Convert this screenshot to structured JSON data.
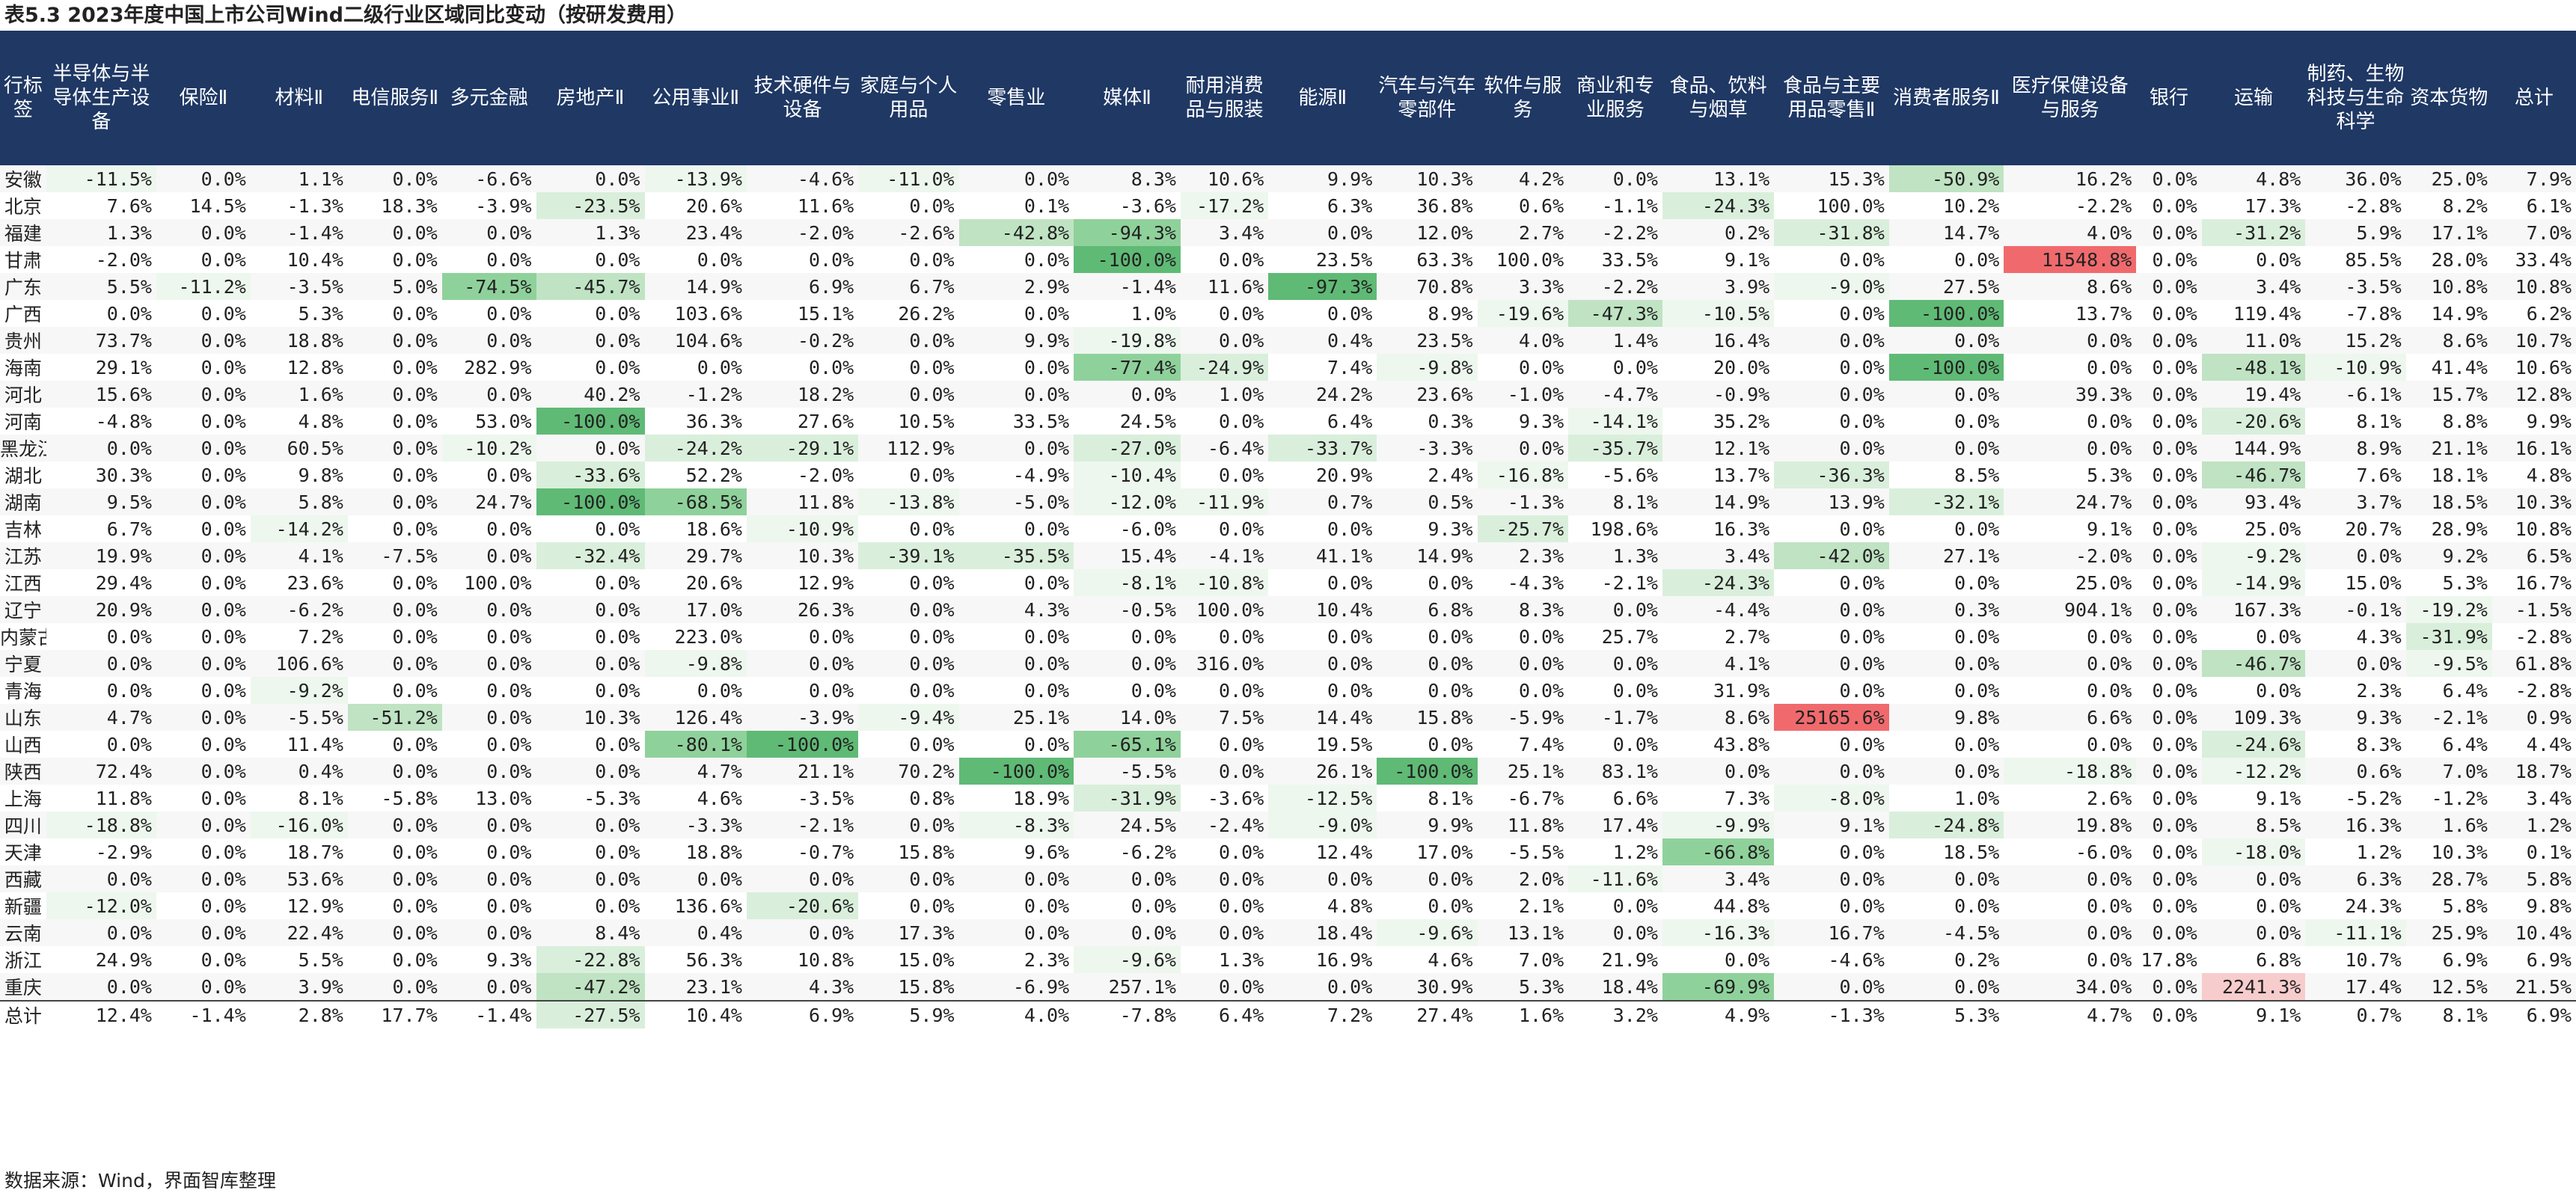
{
  "title": "表5.3 2023年度中国上市公司Wind二级行业区域同比变动（按研发费用）",
  "source": "数据来源：Wind，界面智库整理",
  "headers": [
    "行标签",
    "半导体与半导体生产设备",
    "保险Ⅱ",
    "材料Ⅱ",
    "电信服务Ⅱ",
    "多元金融",
    "房地产Ⅱ",
    "公用事业Ⅱ",
    "技术硬件与设备",
    "家庭与个人用品",
    "零售业",
    "媒体Ⅱ",
    "耐用消费品与服装",
    "能源Ⅱ",
    "汽车与汽车零部件",
    "软件与服务",
    "商业和专业服务",
    "食品、饮料与烟草",
    "食品与主要用品零售Ⅱ",
    "消费者服务Ⅱ",
    "医疗保健设备与服务",
    "银行",
    "运输",
    "制药、生物科技与生命科学",
    "资本货物",
    "总计"
  ],
  "rows": [
    {
      "label": "安徽",
      "values": [
        "-11.5%",
        "0.0%",
        "1.1%",
        "0.0%",
        "-6.6%",
        "0.0%",
        "-13.9%",
        "-4.6%",
        "-11.0%",
        "0.0%",
        "8.3%",
        "10.6%",
        "9.9%",
        "10.3%",
        "4.2%",
        "0.0%",
        "13.1%",
        "15.3%",
        "-50.9%",
        "16.2%",
        "0.0%",
        "4.8%",
        "36.0%",
        "25.0%",
        "7.9%"
      ]
    },
    {
      "label": "北京",
      "values": [
        "7.6%",
        "14.5%",
        "-1.3%",
        "18.3%",
        "-3.9%",
        "-23.5%",
        "20.6%",
        "11.6%",
        "0.0%",
        "0.1%",
        "-3.6%",
        "-17.2%",
        "6.3%",
        "36.8%",
        "0.6%",
        "-1.1%",
        "-24.3%",
        "100.0%",
        "10.2%",
        "-2.2%",
        "0.0%",
        "17.3%",
        "-2.8%",
        "8.2%",
        "6.1%"
      ]
    },
    {
      "label": "福建",
      "values": [
        "1.3%",
        "0.0%",
        "-1.4%",
        "0.0%",
        "0.0%",
        "1.3%",
        "23.4%",
        "-2.0%",
        "-2.6%",
        "-42.8%",
        "-94.3%",
        "3.4%",
        "0.0%",
        "12.0%",
        "2.7%",
        "-2.2%",
        "0.2%",
        "-31.8%",
        "14.7%",
        "4.0%",
        "0.0%",
        "-31.2%",
        "5.9%",
        "17.1%",
        "7.0%"
      ]
    },
    {
      "label": "甘肃",
      "values": [
        "-2.0%",
        "0.0%",
        "10.4%",
        "0.0%",
        "0.0%",
        "0.0%",
        "0.0%",
        "0.0%",
        "0.0%",
        "0.0%",
        "-100.0%",
        "0.0%",
        "23.5%",
        "63.3%",
        "100.0%",
        "33.5%",
        "9.1%",
        "0.0%",
        "0.0%",
        "11548.8%",
        "0.0%",
        "0.0%",
        "85.5%",
        "28.0%",
        "33.4%"
      ]
    },
    {
      "label": "广东",
      "values": [
        "5.5%",
        "-11.2%",
        "-3.5%",
        "5.0%",
        "-74.5%",
        "-45.7%",
        "14.9%",
        "6.9%",
        "6.7%",
        "2.9%",
        "-1.4%",
        "11.6%",
        "-97.3%",
        "70.8%",
        "3.3%",
        "-2.2%",
        "3.9%",
        "-9.0%",
        "27.5%",
        "8.6%",
        "0.0%",
        "3.4%",
        "-3.5%",
        "10.8%",
        "10.8%"
      ]
    },
    {
      "label": "广西",
      "values": [
        "0.0%",
        "0.0%",
        "5.3%",
        "0.0%",
        "0.0%",
        "0.0%",
        "103.6%",
        "15.1%",
        "26.2%",
        "0.0%",
        "1.0%",
        "0.0%",
        "0.0%",
        "8.9%",
        "-19.6%",
        "-47.3%",
        "-10.5%",
        "0.0%",
        "-100.0%",
        "13.7%",
        "0.0%",
        "119.4%",
        "-7.8%",
        "14.9%",
        "6.2%"
      ]
    },
    {
      "label": "贵州",
      "values": [
        "73.7%",
        "0.0%",
        "18.8%",
        "0.0%",
        "0.0%",
        "0.0%",
        "104.6%",
        "-0.2%",
        "0.0%",
        "9.9%",
        "-19.8%",
        "0.0%",
        "0.4%",
        "23.5%",
        "4.0%",
        "1.4%",
        "16.4%",
        "0.0%",
        "0.0%",
        "0.0%",
        "0.0%",
        "11.0%",
        "15.2%",
        "8.6%",
        "10.7%"
      ]
    },
    {
      "label": "海南",
      "values": [
        "29.1%",
        "0.0%",
        "12.8%",
        "0.0%",
        "282.9%",
        "0.0%",
        "0.0%",
        "0.0%",
        "0.0%",
        "0.0%",
        "-77.4%",
        "-24.9%",
        "7.4%",
        "-9.8%",
        "0.0%",
        "0.0%",
        "20.0%",
        "0.0%",
        "-100.0%",
        "0.0%",
        "0.0%",
        "-48.1%",
        "-10.9%",
        "41.4%",
        "10.6%"
      ]
    },
    {
      "label": "河北",
      "values": [
        "15.6%",
        "0.0%",
        "1.6%",
        "0.0%",
        "0.0%",
        "40.2%",
        "-1.2%",
        "18.2%",
        "0.0%",
        "0.0%",
        "0.0%",
        "1.0%",
        "24.2%",
        "23.6%",
        "-1.0%",
        "-4.7%",
        "-0.9%",
        "0.0%",
        "0.0%",
        "39.3%",
        "0.0%",
        "19.4%",
        "-6.1%",
        "15.7%",
        "12.8%"
      ]
    },
    {
      "label": "河南",
      "values": [
        "-4.8%",
        "0.0%",
        "4.8%",
        "0.0%",
        "53.0%",
        "-100.0%",
        "36.3%",
        "27.6%",
        "10.5%",
        "33.5%",
        "24.5%",
        "0.0%",
        "6.4%",
        "0.3%",
        "9.3%",
        "-14.1%",
        "35.2%",
        "0.0%",
        "0.0%",
        "0.0%",
        "0.0%",
        "-20.6%",
        "8.1%",
        "8.8%",
        "9.9%"
      ]
    },
    {
      "label": "黑龙江",
      "values": [
        "0.0%",
        "0.0%",
        "60.5%",
        "0.0%",
        "-10.2%",
        "0.0%",
        "-24.2%",
        "-29.1%",
        "112.9%",
        "0.0%",
        "-27.0%",
        "-6.4%",
        "-33.7%",
        "-3.3%",
        "0.0%",
        "-35.7%",
        "12.1%",
        "0.0%",
        "0.0%",
        "0.0%",
        "0.0%",
        "144.9%",
        "8.9%",
        "21.1%",
        "16.1%"
      ]
    },
    {
      "label": "湖北",
      "values": [
        "30.3%",
        "0.0%",
        "9.8%",
        "0.0%",
        "0.0%",
        "-33.6%",
        "52.2%",
        "-2.0%",
        "0.0%",
        "-4.9%",
        "-10.4%",
        "0.0%",
        "20.9%",
        "2.4%",
        "-16.8%",
        "-5.6%",
        "13.7%",
        "-36.3%",
        "8.5%",
        "5.3%",
        "0.0%",
        "-46.7%",
        "7.6%",
        "18.1%",
        "4.8%"
      ]
    },
    {
      "label": "湖南",
      "values": [
        "9.5%",
        "0.0%",
        "5.8%",
        "0.0%",
        "24.7%",
        "-100.0%",
        "-68.5%",
        "11.8%",
        "-13.8%",
        "-5.0%",
        "-12.0%",
        "-11.9%",
        "0.7%",
        "0.5%",
        "-1.3%",
        "8.1%",
        "14.9%",
        "13.9%",
        "-32.1%",
        "24.7%",
        "0.0%",
        "93.4%",
        "3.7%",
        "18.5%",
        "10.3%"
      ]
    },
    {
      "label": "吉林",
      "values": [
        "6.7%",
        "0.0%",
        "-14.2%",
        "0.0%",
        "0.0%",
        "0.0%",
        "18.6%",
        "-10.9%",
        "0.0%",
        "0.0%",
        "-6.0%",
        "0.0%",
        "0.0%",
        "9.3%",
        "-25.7%",
        "198.6%",
        "16.3%",
        "0.0%",
        "0.0%",
        "9.1%",
        "0.0%",
        "25.0%",
        "20.7%",
        "28.9%",
        "10.8%"
      ]
    },
    {
      "label": "江苏",
      "values": [
        "19.9%",
        "0.0%",
        "4.1%",
        "-7.5%",
        "0.0%",
        "-32.4%",
        "29.7%",
        "10.3%",
        "-39.1%",
        "-35.5%",
        "15.4%",
        "-4.1%",
        "41.1%",
        "14.9%",
        "2.3%",
        "1.3%",
        "3.4%",
        "-42.0%",
        "27.1%",
        "-2.0%",
        "0.0%",
        "-9.2%",
        "0.0%",
        "9.2%",
        "6.5%"
      ]
    },
    {
      "label": "江西",
      "values": [
        "29.4%",
        "0.0%",
        "23.6%",
        "0.0%",
        "100.0%",
        "0.0%",
        "20.6%",
        "12.9%",
        "0.0%",
        "0.0%",
        "-8.1%",
        "-10.8%",
        "0.0%",
        "0.0%",
        "-4.3%",
        "-2.1%",
        "-24.3%",
        "0.0%",
        "0.0%",
        "25.0%",
        "0.0%",
        "-14.9%",
        "15.0%",
        "5.3%",
        "16.7%"
      ]
    },
    {
      "label": "辽宁",
      "values": [
        "20.9%",
        "0.0%",
        "-6.2%",
        "0.0%",
        "0.0%",
        "0.0%",
        "17.0%",
        "26.3%",
        "0.0%",
        "4.3%",
        "-0.5%",
        "100.0%",
        "10.4%",
        "6.8%",
        "8.3%",
        "0.0%",
        "-4.4%",
        "0.0%",
        "0.3%",
        "904.1%",
        "0.0%",
        "167.3%",
        "-0.1%",
        "-19.2%",
        "-1.5%"
      ]
    },
    {
      "label": "内蒙古",
      "values": [
        "0.0%",
        "0.0%",
        "7.2%",
        "0.0%",
        "0.0%",
        "0.0%",
        "223.0%",
        "0.0%",
        "0.0%",
        "0.0%",
        "0.0%",
        "0.0%",
        "0.0%",
        "0.0%",
        "0.0%",
        "25.7%",
        "2.7%",
        "0.0%",
        "0.0%",
        "0.0%",
        "0.0%",
        "0.0%",
        "4.3%",
        "-31.9%",
        "-2.8%"
      ]
    },
    {
      "label": "宁夏",
      "values": [
        "0.0%",
        "0.0%",
        "106.6%",
        "0.0%",
        "0.0%",
        "0.0%",
        "-9.8%",
        "0.0%",
        "0.0%",
        "0.0%",
        "0.0%",
        "316.0%",
        "0.0%",
        "0.0%",
        "0.0%",
        "0.0%",
        "4.1%",
        "0.0%",
        "0.0%",
        "0.0%",
        "0.0%",
        "-46.7%",
        "0.0%",
        "-9.5%",
        "61.8%"
      ]
    },
    {
      "label": "青海",
      "values": [
        "0.0%",
        "0.0%",
        "-9.2%",
        "0.0%",
        "0.0%",
        "0.0%",
        "0.0%",
        "0.0%",
        "0.0%",
        "0.0%",
        "0.0%",
        "0.0%",
        "0.0%",
        "0.0%",
        "0.0%",
        "0.0%",
        "31.9%",
        "0.0%",
        "0.0%",
        "0.0%",
        "0.0%",
        "0.0%",
        "2.3%",
        "6.4%",
        "-2.8%"
      ]
    },
    {
      "label": "山东",
      "values": [
        "4.7%",
        "0.0%",
        "-5.5%",
        "-51.2%",
        "0.0%",
        "10.3%",
        "126.4%",
        "-3.9%",
        "-9.4%",
        "25.1%",
        "14.0%",
        "7.5%",
        "14.4%",
        "15.8%",
        "-5.9%",
        "-1.7%",
        "8.6%",
        "25165.6%",
        "9.8%",
        "6.6%",
        "0.0%",
        "109.3%",
        "9.3%",
        "-2.1%",
        "0.9%"
      ]
    },
    {
      "label": "山西",
      "values": [
        "0.0%",
        "0.0%",
        "11.4%",
        "0.0%",
        "0.0%",
        "0.0%",
        "-80.1%",
        "-100.0%",
        "0.0%",
        "0.0%",
        "-65.1%",
        "0.0%",
        "19.5%",
        "0.0%",
        "7.4%",
        "0.0%",
        "43.8%",
        "0.0%",
        "0.0%",
        "0.0%",
        "0.0%",
        "-24.6%",
        "8.3%",
        "6.4%",
        "4.4%"
      ]
    },
    {
      "label": "陕西",
      "values": [
        "72.4%",
        "0.0%",
        "0.4%",
        "0.0%",
        "0.0%",
        "0.0%",
        "4.7%",
        "21.1%",
        "70.2%",
        "-100.0%",
        "-5.5%",
        "0.0%",
        "26.1%",
        "-100.0%",
        "25.1%",
        "83.1%",
        "0.0%",
        "0.0%",
        "0.0%",
        "-18.8%",
        "0.0%",
        "-12.2%",
        "0.6%",
        "7.0%",
        "18.7%"
      ]
    },
    {
      "label": "上海",
      "values": [
        "11.8%",
        "0.0%",
        "8.1%",
        "-5.8%",
        "13.0%",
        "-5.3%",
        "4.6%",
        "-3.5%",
        "0.8%",
        "18.9%",
        "-31.9%",
        "-3.6%",
        "-12.5%",
        "8.1%",
        "-6.7%",
        "6.6%",
        "7.3%",
        "-8.0%",
        "1.0%",
        "2.6%",
        "0.0%",
        "9.1%",
        "-5.2%",
        "-1.2%",
        "3.4%"
      ]
    },
    {
      "label": "四川",
      "values": [
        "-18.8%",
        "0.0%",
        "-16.0%",
        "0.0%",
        "0.0%",
        "0.0%",
        "-3.3%",
        "-2.1%",
        "0.0%",
        "-8.3%",
        "24.5%",
        "-2.4%",
        "-9.0%",
        "9.9%",
        "11.8%",
        "17.4%",
        "-9.9%",
        "9.1%",
        "-24.8%",
        "19.8%",
        "0.0%",
        "8.5%",
        "16.3%",
        "1.6%",
        "1.2%"
      ]
    },
    {
      "label": "天津",
      "values": [
        "-2.9%",
        "0.0%",
        "18.7%",
        "0.0%",
        "0.0%",
        "0.0%",
        "18.8%",
        "-0.7%",
        "15.8%",
        "9.6%",
        "-6.2%",
        "0.0%",
        "12.4%",
        "17.0%",
        "-5.5%",
        "1.2%",
        "-66.8%",
        "0.0%",
        "18.5%",
        "-6.0%",
        "0.0%",
        "-18.0%",
        "1.2%",
        "10.3%",
        "0.1%"
      ]
    },
    {
      "label": "西藏",
      "values": [
        "0.0%",
        "0.0%",
        "53.6%",
        "0.0%",
        "0.0%",
        "0.0%",
        "0.0%",
        "0.0%",
        "0.0%",
        "0.0%",
        "0.0%",
        "0.0%",
        "0.0%",
        "0.0%",
        "2.0%",
        "-11.6%",
        "3.4%",
        "0.0%",
        "0.0%",
        "0.0%",
        "0.0%",
        "0.0%",
        "6.3%",
        "28.7%",
        "5.8%"
      ]
    },
    {
      "label": "新疆",
      "values": [
        "-12.0%",
        "0.0%",
        "12.9%",
        "0.0%",
        "0.0%",
        "0.0%",
        "136.6%",
        "-20.6%",
        "0.0%",
        "0.0%",
        "0.0%",
        "0.0%",
        "4.8%",
        "0.0%",
        "2.1%",
        "0.0%",
        "44.8%",
        "0.0%",
        "0.0%",
        "0.0%",
        "0.0%",
        "0.0%",
        "24.3%",
        "5.8%",
        "9.8%"
      ]
    },
    {
      "label": "云南",
      "values": [
        "0.0%",
        "0.0%",
        "22.4%",
        "0.0%",
        "0.0%",
        "8.4%",
        "0.4%",
        "0.0%",
        "17.3%",
        "0.0%",
        "0.0%",
        "0.0%",
        "18.4%",
        "-9.6%",
        "13.1%",
        "0.0%",
        "-16.3%",
        "16.7%",
        "-4.5%",
        "0.0%",
        "0.0%",
        "0.0%",
        "-11.1%",
        "25.9%",
        "10.4%"
      ]
    },
    {
      "label": "浙江",
      "values": [
        "24.9%",
        "0.0%",
        "5.5%",
        "0.0%",
        "9.3%",
        "-22.8%",
        "56.3%",
        "10.8%",
        "15.0%",
        "2.3%",
        "-9.6%",
        "1.3%",
        "16.9%",
        "4.6%",
        "7.0%",
        "21.9%",
        "0.0%",
        "-4.6%",
        "0.2%",
        "0.0%",
        "17.8%",
        "6.8%",
        "10.7%",
        "6.9%",
        "6.9%"
      ]
    },
    {
      "label": "重庆",
      "values": [
        "0.0%",
        "0.0%",
        "3.9%",
        "0.0%",
        "0.0%",
        "-47.2%",
        "23.1%",
        "4.3%",
        "15.8%",
        "-6.9%",
        "257.1%",
        "0.0%",
        "0.0%",
        "30.9%",
        "5.3%",
        "18.4%",
        "-69.9%",
        "0.0%",
        "0.0%",
        "34.0%",
        "0.0%",
        "2241.3%",
        "17.4%",
        "12.5%",
        "21.5%"
      ]
    },
    {
      "label": "总计",
      "values": [
        "12.4%",
        "-1.4%",
        "2.8%",
        "17.7%",
        "-1.4%",
        "-27.5%",
        "10.4%",
        "6.9%",
        "5.9%",
        "4.0%",
        "-7.8%",
        "6.4%",
        "7.2%",
        "27.4%",
        "1.6%",
        "3.2%",
        "4.9%",
        "-1.3%",
        "5.3%",
        "4.7%",
        "0.0%",
        "9.1%",
        "0.7%",
        "8.1%",
        "6.9%"
      ]
    }
  ],
  "colors": {
    "header_bg": "#1f3864",
    "header_text": "#ffffff",
    "neg_scale": "green",
    "pos_scale": "red"
  }
}
